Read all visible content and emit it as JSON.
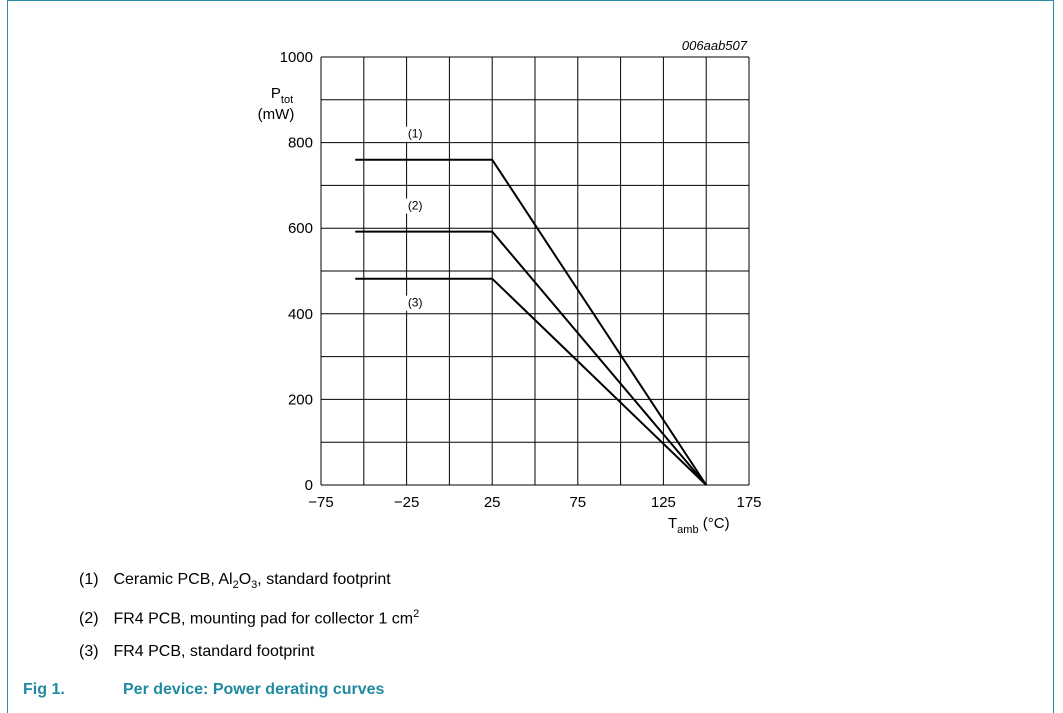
{
  "chart_data": {
    "type": "line",
    "code": "006aab507",
    "ylabel_main": "P",
    "ylabel_sub": "tot",
    "ylabel_unit": "(mW)",
    "xlabel_main": "T",
    "xlabel_sub": "amb",
    "xlabel_unit": "(°C)",
    "xlim": [
      -75,
      175
    ],
    "ylim": [
      0,
      1000
    ],
    "xticks": [
      -75,
      -25,
      25,
      75,
      125,
      175
    ],
    "xtick_labels": [
      "−75",
      "−25",
      "25",
      "75",
      "125",
      "175"
    ],
    "yticks": [
      0,
      200,
      400,
      600,
      800,
      1000
    ],
    "ytick_labels": [
      "0",
      "200",
      "400",
      "600",
      "800",
      "1000"
    ],
    "grid": true,
    "series": [
      {
        "name": "(1)",
        "x": [
          -55,
          25,
          150
        ],
        "y": [
          760,
          760,
          0
        ]
      },
      {
        "name": "(2)",
        "x": [
          -55,
          25,
          150
        ],
        "y": [
          592,
          592,
          0
        ]
      },
      {
        "name": "(3)",
        "x": [
          -55,
          25,
          150
        ],
        "y": [
          482,
          482,
          0
        ]
      }
    ]
  },
  "legend": {
    "items": [
      {
        "num": "(1)",
        "text_a": "Ceramic PCB, Al",
        "sub_a": "2",
        "text_b": "O",
        "sub_b": "3",
        "text_c": ", standard footprint"
      },
      {
        "num": "(2)",
        "text": "FR4 PCB, mounting pad for collector 1 cm",
        "sup": "2"
      },
      {
        "num": "(3)",
        "text": "FR4 PCB, standard footprint"
      }
    ]
  },
  "caption": {
    "fig_num": "Fig 1.",
    "title": "Per device: Power derating curves"
  }
}
